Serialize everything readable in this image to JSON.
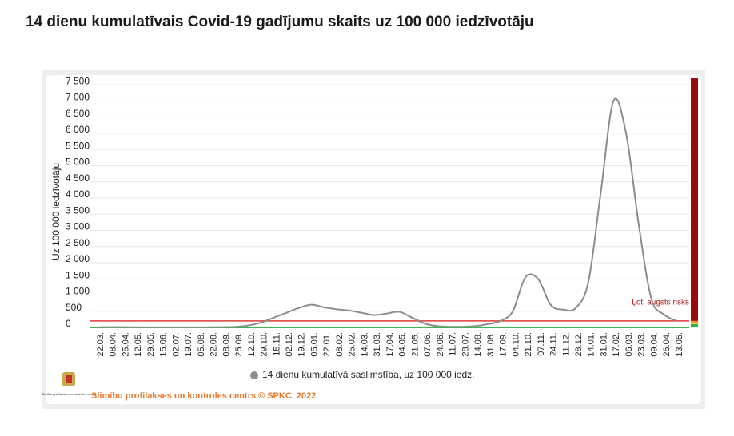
{
  "chart_data": {
    "type": "line",
    "title": "14 dienu kumulatīvais Covid-19 gadījumu skaits uz 100 000 iedzīvotāju",
    "y_label": "Uz 100 000 iedzīvotāju",
    "categories": [
      "22.03.",
      "08.04.",
      "25.04.",
      "12.05.",
      "29.05.",
      "15.06.",
      "02.07.",
      "19.07.",
      "05.08.",
      "22.08.",
      "08.09.",
      "25.09.",
      "12.10.",
      "29.10.",
      "15.11.",
      "02.12.",
      "19.12.",
      "05.01.",
      "22.01.",
      "08.02.",
      "25.02.",
      "14.03.",
      "31.03.",
      "17.04.",
      "04.05.",
      "21.05.",
      "07.06.",
      "24.06.",
      "11.07.",
      "28.07.",
      "14.08.",
      "31.08.",
      "17.09.",
      "04.10.",
      "21.10.",
      "07.11.",
      "24.11.",
      "11.12.",
      "28.12.",
      "14.01.",
      "31.01.",
      "17.02.",
      "06.03.",
      "23.03.",
      "09.04.",
      "26.04.",
      "13.05."
    ],
    "series": [
      {
        "name": "14 dienu kumulatīvā saslimstība, uz 100 000 iedz.",
        "color": "#8c8c8c",
        "values": [
          5,
          10,
          8,
          5,
          3,
          2,
          2,
          2,
          3,
          5,
          10,
          20,
          60,
          150,
          300,
          450,
          600,
          700,
          620,
          560,
          520,
          450,
          380,
          430,
          480,
          300,
          120,
          40,
          20,
          20,
          40,
          100,
          200,
          500,
          1550,
          1500,
          700,
          550,
          600,
          1400,
          4200,
          7000,
          6000,
          3200,
          900,
          400,
          200
        ]
      }
    ],
    "ylim": [
      0,
      7700
    ],
    "yticks": [
      0,
      500,
      {
        "value": 1000,
        "label": "1 000"
      },
      {
        "value": 1500,
        "label": "1 500"
      },
      {
        "value": 2000,
        "label": "2 000"
      },
      {
        "value": 2500,
        "label": "2 500"
      },
      {
        "value": 3000,
        "label": "3 000"
      },
      {
        "value": 3500,
        "label": "3 500"
      },
      {
        "value": 4000,
        "label": "4 000"
      },
      {
        "value": 4500,
        "label": "4 500"
      },
      {
        "value": 5000,
        "label": "5 000"
      },
      {
        "value": 5500,
        "label": "5 500"
      },
      {
        "value": 6000,
        "label": "6 000"
      },
      {
        "value": 6500,
        "label": "6 500"
      },
      {
        "value": 7000,
        "label": "7 000"
      },
      {
        "value": 7500,
        "label": "7 500"
      }
    ],
    "grid": true,
    "risk_line": {
      "value": 200,
      "label": "Ļoti augsts risks",
      "color": "#e03a3a"
    },
    "risk_bands": [
      {
        "from": 200,
        "to": 7700,
        "color": "#9b0a0a"
      },
      {
        "from": 150,
        "to": 200,
        "color": "#f08a2c"
      },
      {
        "from": 100,
        "to": 150,
        "color": "#f5d53a"
      },
      {
        "from": 0,
        "to": 100,
        "color": "#2fb34a"
      }
    ],
    "baseline_color": "#3cb54a",
    "logo_text": "Slimību profilakses un kontroles centrs",
    "footer": "Slimību profilakses un kontroles centrs © SPKC, 2022"
  }
}
